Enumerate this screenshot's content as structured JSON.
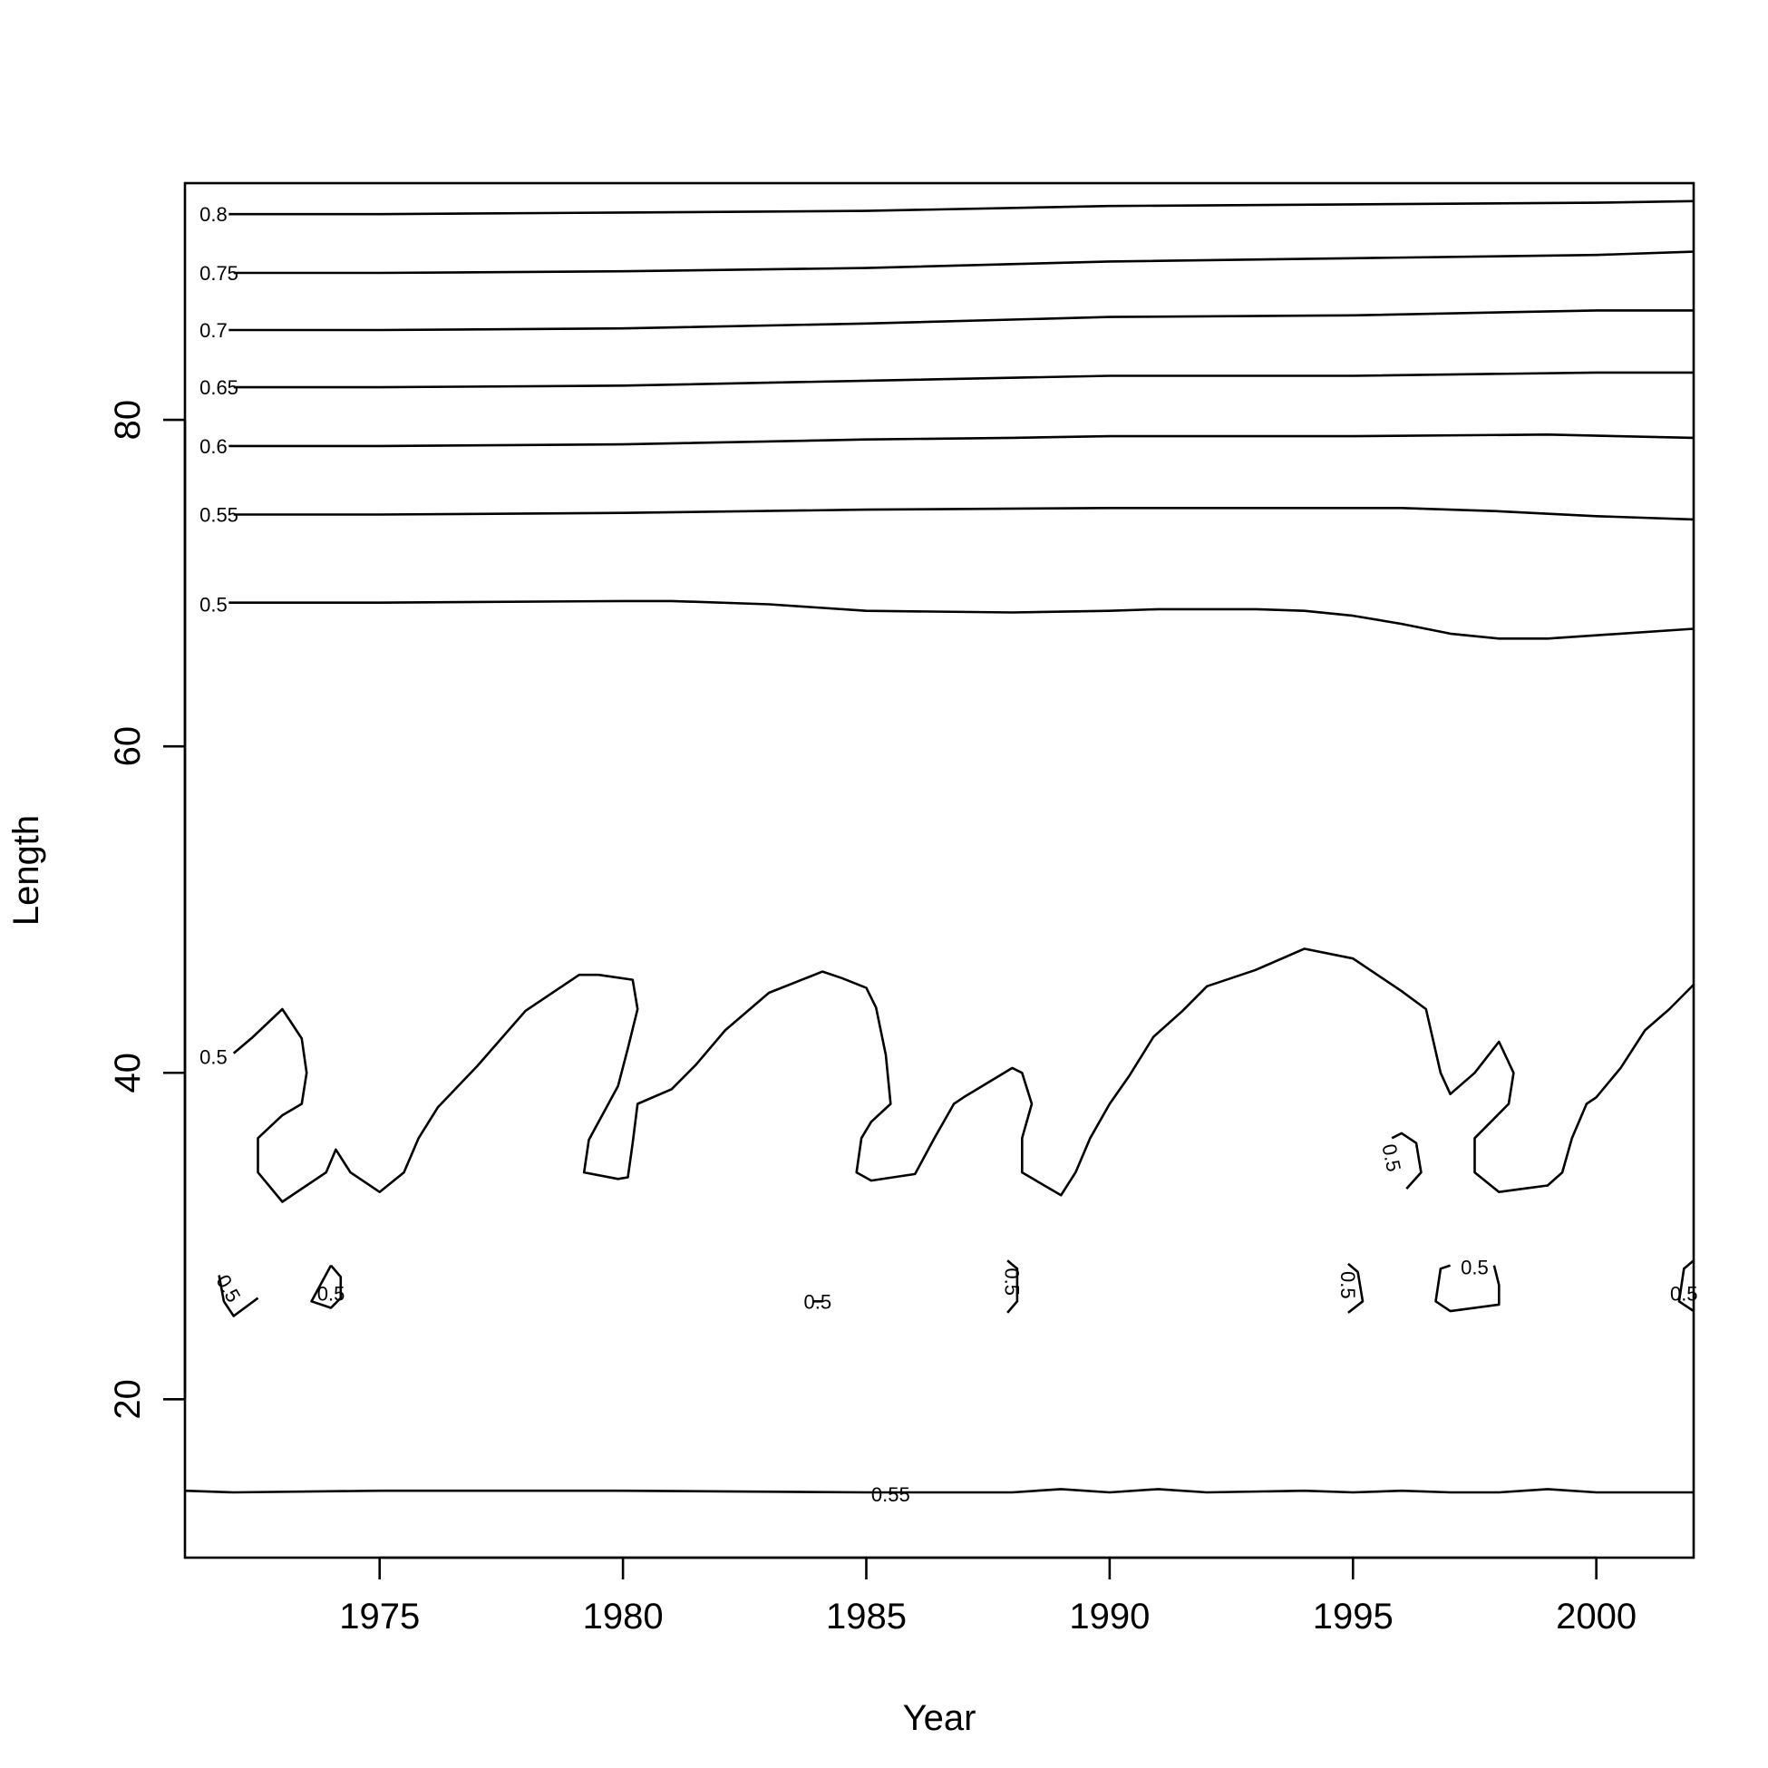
{
  "chart_data": {
    "type": "contour",
    "title": "",
    "xlabel": "Year",
    "ylabel": "Length",
    "xlim": [
      1971,
      2002
    ],
    "ylim": [
      10.3,
      94.5
    ],
    "x_ticks": [
      1975,
      1980,
      1985,
      1990,
      1995,
      2000
    ],
    "y_ticks": [
      20,
      40,
      60,
      80
    ],
    "grid": false,
    "legend": "none",
    "color": "#000000",
    "contours": [
      {
        "level": "0.8",
        "label_pos": [
          1971.3,
          92.6
        ],
        "points": [
          [
            1971.9,
            92.6
          ],
          [
            1975,
            92.6
          ],
          [
            1980,
            92.7
          ],
          [
            1985,
            92.8
          ],
          [
            1990,
            93.1
          ],
          [
            1995,
            93.2
          ],
          [
            2000,
            93.3
          ],
          [
            2002,
            93.4
          ]
        ]
      },
      {
        "level": "0.75",
        "label_pos": [
          1971.3,
          89.0
        ],
        "points": [
          [
            1972.0,
            89.0
          ],
          [
            1975,
            89.0
          ],
          [
            1980,
            89.1
          ],
          [
            1985,
            89.3
          ],
          [
            1990,
            89.7
          ],
          [
            1995,
            89.9
          ],
          [
            2000,
            90.1
          ],
          [
            2002,
            90.3
          ]
        ]
      },
      {
        "level": "0.7",
        "label_pos": [
          1971.3,
          85.5
        ],
        "points": [
          [
            1971.9,
            85.5
          ],
          [
            1975,
            85.5
          ],
          [
            1980,
            85.6
          ],
          [
            1985,
            85.9
          ],
          [
            1990,
            86.3
          ],
          [
            1995,
            86.4
          ],
          [
            2000,
            86.7
          ],
          [
            2002,
            86.7
          ]
        ]
      },
      {
        "level": "0.65",
        "label_pos": [
          1971.3,
          82.0
        ],
        "points": [
          [
            1972.0,
            82.0
          ],
          [
            1975,
            82.0
          ],
          [
            1980,
            82.1
          ],
          [
            1985,
            82.4
          ],
          [
            1990,
            82.7
          ],
          [
            1995,
            82.7
          ],
          [
            2000,
            82.9
          ],
          [
            2002,
            82.9
          ]
        ]
      },
      {
        "level": "0.6",
        "label_pos": [
          1971.3,
          78.4
        ],
        "points": [
          [
            1971.9,
            78.4
          ],
          [
            1975,
            78.4
          ],
          [
            1980,
            78.5
          ],
          [
            1985,
            78.8
          ],
          [
            1988,
            78.9
          ],
          [
            1990,
            79.0
          ],
          [
            1995,
            79.0
          ],
          [
            1999,
            79.1
          ],
          [
            2002,
            78.9
          ]
        ]
      },
      {
        "level": "0.55",
        "label_pos": [
          1971.3,
          74.2
        ],
        "points": [
          [
            1972.0,
            74.2
          ],
          [
            1975,
            74.2
          ],
          [
            1980,
            74.3
          ],
          [
            1985,
            74.5
          ],
          [
            1990,
            74.6
          ],
          [
            1996,
            74.6
          ],
          [
            1998,
            74.4
          ],
          [
            2000,
            74.1
          ],
          [
            2002,
            73.9
          ]
        ]
      },
      {
        "level": "0.5",
        "label_pos": [
          1971.3,
          68.7
        ],
        "points": [
          [
            1971.9,
            68.8
          ],
          [
            1975,
            68.8
          ],
          [
            1980,
            68.9
          ],
          [
            1981,
            68.9
          ],
          [
            1983,
            68.7
          ],
          [
            1985,
            68.3
          ],
          [
            1988,
            68.2
          ],
          [
            1990,
            68.3
          ],
          [
            1991,
            68.4
          ],
          [
            1993,
            68.4
          ],
          [
            1994,
            68.3
          ],
          [
            1995,
            68.0
          ],
          [
            1996,
            67.5
          ],
          [
            1997,
            66.9
          ],
          [
            1998,
            66.6
          ],
          [
            1999,
            66.6
          ],
          [
            2000,
            66.8
          ],
          [
            2002,
            67.2
          ]
        ]
      },
      {
        "level": "0.5",
        "label_pos": [
          1971.3,
          41.0
        ],
        "points": [
          [
            1972.0,
            41.2
          ],
          [
            1972.4,
            42.2
          ],
          [
            1973.0,
            43.9
          ],
          [
            1973.4,
            42.1
          ],
          [
            1973.5,
            40.0
          ],
          [
            1973.4,
            38.1
          ],
          [
            1973.0,
            37.4
          ],
          [
            1972.5,
            36.0
          ],
          [
            1972.5,
            33.9
          ],
          [
            1973.0,
            32.1
          ],
          [
            1973.9,
            33.9
          ],
          [
            1974.1,
            35.3
          ],
          [
            1974.4,
            33.9
          ],
          [
            1975.0,
            32.7
          ],
          [
            1975.5,
            33.9
          ],
          [
            1975.8,
            36.0
          ],
          [
            1976.2,
            37.9
          ],
          [
            1977.0,
            40.4
          ],
          [
            1978.0,
            43.8
          ],
          [
            1979.1,
            46.0
          ],
          [
            1979.5,
            46.0
          ],
          [
            1980.2,
            45.7
          ],
          [
            1980.3,
            43.9
          ],
          [
            1980.1,
            41.5
          ],
          [
            1979.9,
            39.2
          ],
          [
            1979.7,
            38.1
          ],
          [
            1979.3,
            35.9
          ],
          [
            1979.2,
            33.9
          ],
          [
            1979.9,
            33.5
          ],
          [
            1980.1,
            33.6
          ],
          [
            1980.2,
            35.7
          ],
          [
            1980.3,
            38.1
          ],
          [
            1981.0,
            39.0
          ],
          [
            1981.5,
            40.5
          ],
          [
            1982.1,
            42.6
          ],
          [
            1983.0,
            44.9
          ],
          [
            1984.1,
            46.2
          ],
          [
            1984.5,
            45.8
          ],
          [
            1985.0,
            45.2
          ],
          [
            1985.2,
            44.0
          ],
          [
            1985.4,
            41.1
          ],
          [
            1985.5,
            38.1
          ],
          [
            1985.1,
            37.0
          ],
          [
            1984.9,
            36.0
          ],
          [
            1984.8,
            33.9
          ],
          [
            1985.1,
            33.4
          ],
          [
            1986.0,
            33.8
          ],
          [
            1986.4,
            36.0
          ],
          [
            1986.8,
            38.1
          ],
          [
            1987.0,
            38.5
          ],
          [
            1988.0,
            40.3
          ],
          [
            1988.2,
            40.0
          ],
          [
            1988.4,
            38.1
          ],
          [
            1988.2,
            36.0
          ],
          [
            1988.2,
            33.9
          ],
          [
            1989.0,
            32.5
          ],
          [
            1989.3,
            33.9
          ],
          [
            1989.6,
            36.0
          ],
          [
            1990.0,
            38.1
          ],
          [
            1990.4,
            39.8
          ],
          [
            1990.9,
            42.2
          ],
          [
            1991.5,
            43.8
          ],
          [
            1992.0,
            45.3
          ],
          [
            1993.0,
            46.3
          ],
          [
            1994.0,
            47.6
          ],
          [
            1995.0,
            47.0
          ],
          [
            1995.5,
            46.0
          ],
          [
            1996.0,
            45.0
          ],
          [
            1996.5,
            43.9
          ],
          [
            1996.8,
            40.0
          ],
          [
            1997.0,
            38.7
          ],
          [
            1997.5,
            40.0
          ],
          [
            1998.0,
            41.9
          ],
          [
            1998.3,
            40.0
          ],
          [
            1998.2,
            38.1
          ],
          [
            1997.5,
            36.0
          ],
          [
            1997.5,
            33.9
          ],
          [
            1998.0,
            32.7
          ],
          [
            1998.5,
            32.9
          ],
          [
            1999.0,
            33.1
          ],
          [
            1999.3,
            33.9
          ],
          [
            1999.5,
            36.0
          ],
          [
            1999.8,
            38.1
          ],
          [
            2000.0,
            38.5
          ],
          [
            2000.5,
            40.3
          ],
          [
            2001.0,
            42.6
          ],
          [
            2001.5,
            43.9
          ],
          [
            2002.0,
            45.4
          ]
        ]
      },
      {
        "level": "0.5",
        "label_pos": [
          1995.8,
          34.8
        ],
        "label_rotate": 78,
        "points": [
          [
            1995.8,
            36.0
          ],
          [
            1996.0,
            36.3
          ],
          [
            1996.3,
            35.7
          ],
          [
            1996.4,
            33.9
          ],
          [
            1996.1,
            32.9
          ]
        ]
      },
      {
        "level": "0.5",
        "label_pos": [
          1971.9,
          26.8
        ],
        "label_rotate": 60,
        "points": [
          [
            1971.7,
            27.6
          ],
          [
            1971.8,
            26.0
          ],
          [
            1972.0,
            25.1
          ],
          [
            1972.5,
            26.2
          ]
        ]
      },
      {
        "level": "0.5",
        "label_pos": [
          1974.0,
          26.5
        ],
        "points": [
          [
            1974.0,
            28.2
          ],
          [
            1973.6,
            26.0
          ],
          [
            1974.0,
            25.6
          ],
          [
            1974.2,
            26.2
          ],
          [
            1974.2,
            27.5
          ],
          [
            1974.0,
            28.2
          ]
        ]
      },
      {
        "level": "0.5",
        "label_pos": [
          1984.0,
          26.0
        ],
        "points": [
          [
            1983.9,
            26.0
          ],
          [
            1984.1,
            26.0
          ]
        ]
      },
      {
        "level": "0.5",
        "label_pos": [
          1988.0,
          27.2
        ],
        "label_rotate": 90,
        "points": [
          [
            1987.9,
            28.5
          ],
          [
            1988.1,
            28.0
          ],
          [
            1988.1,
            26.0
          ],
          [
            1987.9,
            25.3
          ]
        ]
      },
      {
        "level": "0.5",
        "label_pos": [
          1994.9,
          27.0
        ],
        "label_rotate": 90,
        "points": [
          [
            1994.9,
            28.3
          ],
          [
            1995.1,
            27.8
          ],
          [
            1995.2,
            26.0
          ],
          [
            1994.9,
            25.3
          ]
        ]
      },
      {
        "level": "0.5",
        "label_pos": [
          1997.5,
          28.1
        ],
        "points": [
          [
            1997.0,
            28.2
          ],
          [
            1996.8,
            28.0
          ],
          [
            1996.7,
            26.0
          ],
          [
            1997.0,
            25.4
          ],
          [
            1998.0,
            25.8
          ],
          [
            1998.0,
            27.0
          ],
          [
            1997.9,
            28.2
          ]
        ]
      },
      {
        "level": "0.5",
        "label_pos": [
          2001.8,
          26.5
        ],
        "points": [
          [
            2002.0,
            28.5
          ],
          [
            2001.8,
            28.0
          ],
          [
            2001.7,
            26.0
          ],
          [
            2002.0,
            25.4
          ]
        ]
      },
      {
        "level": "0.55",
        "label_pos": [
          1985.5,
          14.2
        ],
        "points": [
          [
            1971.0,
            14.4
          ],
          [
            1972.0,
            14.3
          ],
          [
            1975.0,
            14.4
          ],
          [
            1980.0,
            14.4
          ],
          [
            1985.0,
            14.3
          ],
          [
            1988.0,
            14.3
          ],
          [
            1989.0,
            14.5
          ],
          [
            1990.0,
            14.3
          ],
          [
            1991.0,
            14.5
          ],
          [
            1992.0,
            14.3
          ],
          [
            1994.0,
            14.4
          ],
          [
            1995.0,
            14.3
          ],
          [
            1996.0,
            14.4
          ],
          [
            1997.0,
            14.3
          ],
          [
            1998.0,
            14.3
          ],
          [
            1999.0,
            14.5
          ],
          [
            2000.0,
            14.3
          ],
          [
            2002.0,
            14.3
          ]
        ]
      }
    ]
  }
}
